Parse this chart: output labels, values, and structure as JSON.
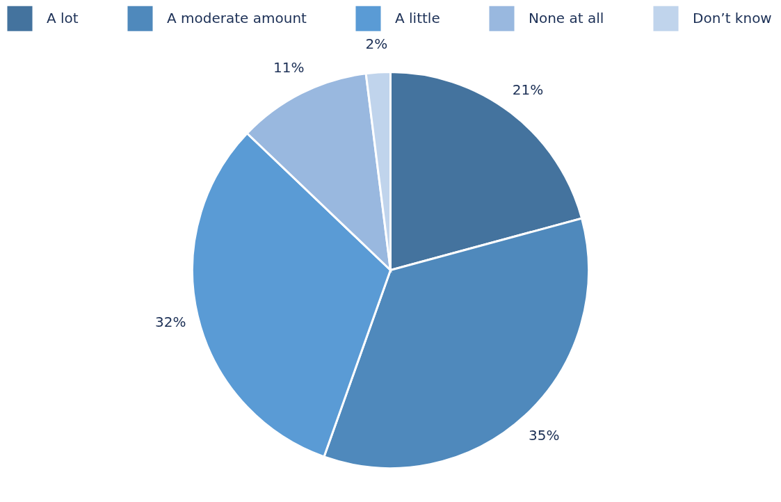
{
  "chart_data": {
    "type": "pie",
    "categories": [
      "A lot",
      "A moderate amount",
      "A little",
      "None at all",
      "Don’t know"
    ],
    "values": [
      21,
      35,
      32,
      11,
      2
    ],
    "colors": [
      "#44739e",
      "#4f89bc",
      "#5a9bd5",
      "#99b8df",
      "#c0d4ec"
    ],
    "value_labels": [
      "21%",
      "35%",
      "32%",
      "11%",
      "2%"
    ],
    "legend": "top"
  }
}
